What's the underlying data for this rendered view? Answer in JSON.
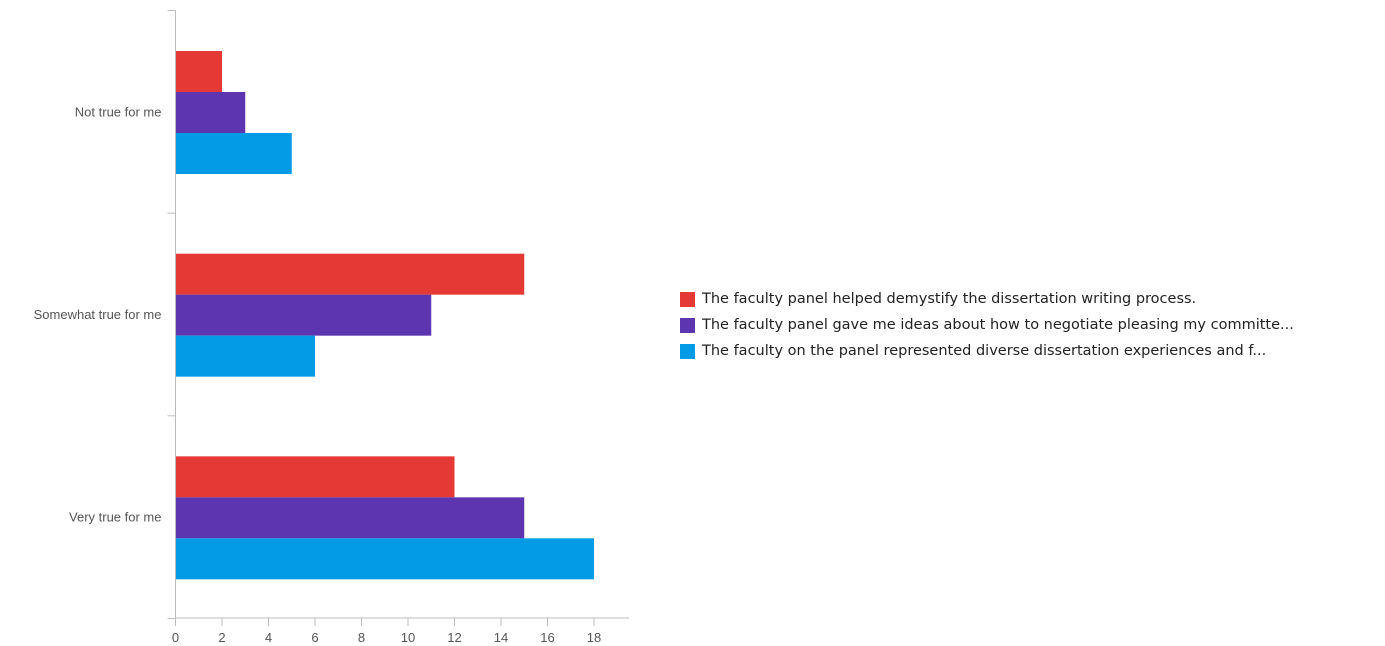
{
  "chart_data": {
    "type": "bar",
    "orientation": "horizontal",
    "categories": [
      "Not true for me",
      "Somewhat true for me",
      "Very true for me"
    ],
    "series": [
      {
        "name": "The faculty panel helped demystify the dissertation writing process.",
        "color": "#e53935",
        "values": [
          2,
          15,
          12
        ]
      },
      {
        "name": "The faculty panel gave me ideas about how to negotiate pleasing my committe...",
        "color": "#5e35b1",
        "values": [
          3,
          11,
          15
        ]
      },
      {
        "name": "The faculty on the panel represented diverse dissertation experiences and f...",
        "color": "#039be5",
        "values": [
          5,
          6,
          18
        ]
      }
    ],
    "xticks": [
      "0",
      "2",
      "4",
      "6",
      "8",
      "10",
      "12",
      "14",
      "16",
      "18"
    ],
    "xlim": [
      0,
      19.5
    ],
    "grid": false,
    "legend_position": "right"
  }
}
